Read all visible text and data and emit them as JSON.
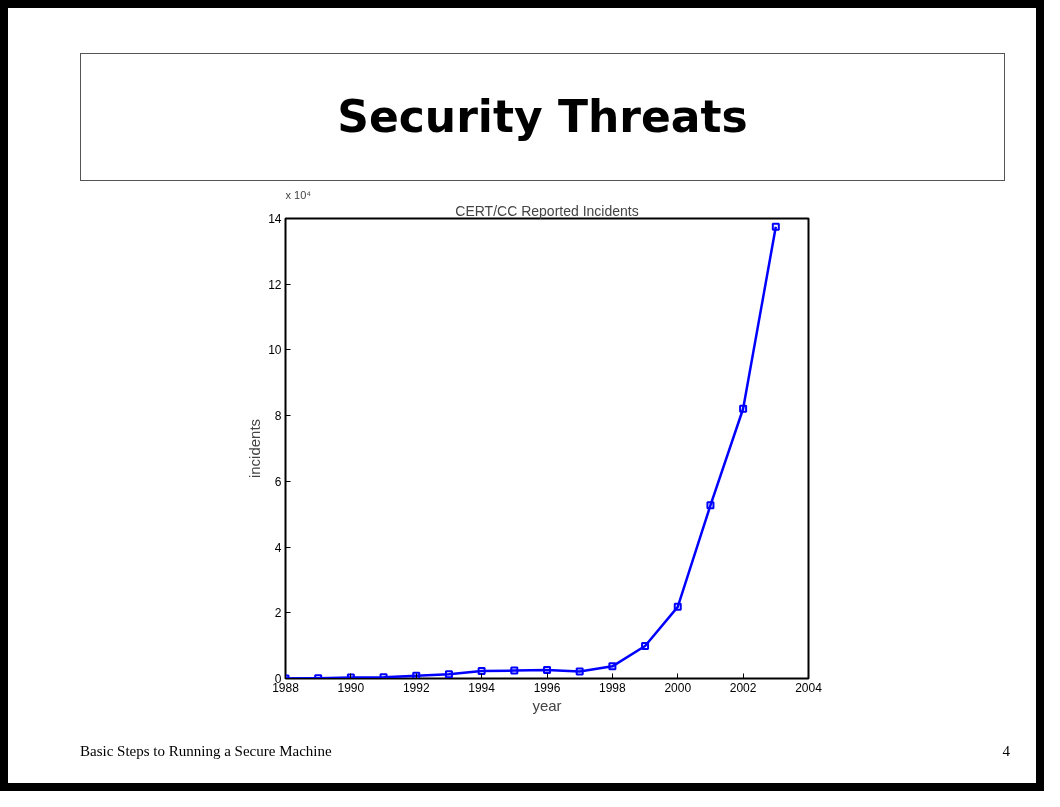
{
  "chart_data": {
    "type": "line",
    "title": "CERT/CC Reported Incidents",
    "xlabel": "year",
    "ylabel": "incidents",
    "x": [
      1988,
      1989,
      1990,
      1991,
      1992,
      1993,
      1994,
      1995,
      1996,
      1997,
      1998,
      1999,
      2000,
      2001,
      2002,
      2003
    ],
    "series": [
      {
        "color": "#0000ff",
        "values": [
          0,
          0.01,
          0.03,
          0.04,
          0.08,
          0.13,
          0.23,
          0.24,
          0.26,
          0.21,
          0.37,
          0.99,
          2.18,
          5.27,
          8.21,
          13.75
        ]
      }
    ],
    "xlim": [
      1988,
      2004
    ],
    "xticks": [
      1988,
      1990,
      1992,
      1994,
      1996,
      1998,
      2000,
      2002,
      2004
    ],
    "ylim": [
      0,
      14
    ],
    "yticks": [
      0,
      2,
      4,
      6,
      8,
      10,
      12,
      14
    ],
    "marker": "square",
    "line_style": "solid",
    "annotations": [
      "x 10⁴",
      "Security Threats",
      "Basic Steps to Running a Secure Machine",
      "4"
    ]
  }
}
